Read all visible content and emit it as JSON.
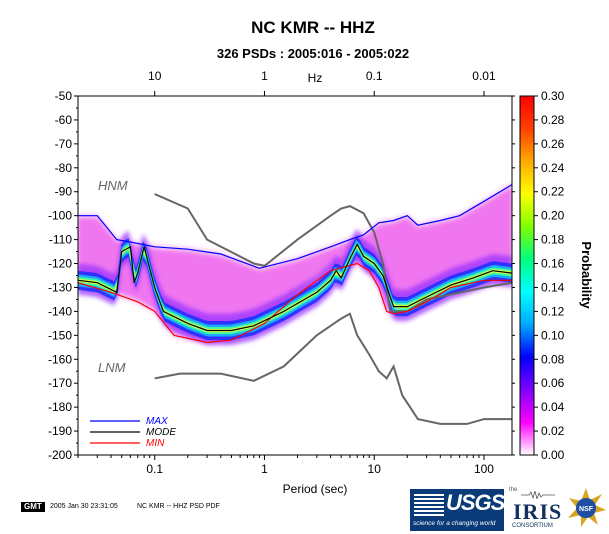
{
  "chart_data": {
    "type": "heatmap",
    "title": "NC KMR -- HHZ",
    "subtitle": "326 PSDs : 2005:016 - 2005:022",
    "xlabel": "Period (sec)",
    "top_axis_label": "Hz",
    "ylabel": "",
    "colorbar_label": "Probability",
    "x_scale": "log",
    "xlim": [
      0.02,
      180
    ],
    "ylim": [
      -200,
      -50
    ],
    "x_ticks": [
      0.1,
      1,
      10,
      100
    ],
    "x_tick_labels": [
      "0.1",
      "1",
      "10",
      "100"
    ],
    "top_ticks": [
      10,
      1,
      0.1,
      0.01
    ],
    "top_tick_labels": [
      "10",
      "1",
      "0.1",
      "0.01"
    ],
    "y_ticks": [
      -50,
      -60,
      -70,
      -80,
      -90,
      -100,
      -110,
      -120,
      -130,
      -140,
      -150,
      -160,
      -170,
      -180,
      -190,
      -200
    ],
    "y_tick_labels": [
      "-50",
      "-60",
      "-70",
      "-80",
      "-90",
      "-100",
      "-110",
      "-120",
      "-130",
      "-140",
      "-150",
      "-160",
      "-170",
      "-180",
      "-190",
      "-200"
    ],
    "colorbar_range": [
      0.0,
      0.3
    ],
    "colorbar_ticks": [
      0.3,
      0.28,
      0.26,
      0.24,
      0.22,
      0.2,
      0.18,
      0.16,
      0.14,
      0.12,
      0.1,
      0.08,
      0.06,
      0.04,
      0.02,
      0.0
    ],
    "colorbar_tick_labels": [
      "0.30",
      "0.28",
      "0.26",
      "0.24",
      "0.22",
      "0.20",
      "0.18",
      "0.16",
      "0.14",
      "0.12",
      "0.10",
      "0.08",
      "0.06",
      "0.04",
      "0.02",
      "0.00"
    ],
    "colorbar_colors": [
      "#ffffff",
      "#ff00ff",
      "#8000ff",
      "#0000ff",
      "#00aaff",
      "#00ffff",
      "#00ff80",
      "#80ff00",
      "#ffff00",
      "#ffaa00",
      "#ff4000",
      "#ff0000"
    ],
    "series": [
      {
        "name": "MAX",
        "color": "#0000ff",
        "x": [
          0.02,
          0.03,
          0.045,
          0.06,
          0.1,
          0.2,
          0.4,
          0.9,
          2,
          4,
          6,
          8,
          11,
          15,
          20,
          25,
          40,
          60,
          100,
          180
        ],
        "y": [
          -100,
          -100,
          -110,
          -111,
          -113,
          -114,
          -116,
          -122,
          -118,
          -113,
          -110,
          -108,
          -103,
          -102,
          -100,
          -104,
          -102,
          -100,
          -94,
          -87
        ]
      },
      {
        "name": "MODE",
        "color": "#000000",
        "x": [
          0.02,
          0.03,
          0.045,
          0.05,
          0.06,
          0.065,
          0.07,
          0.08,
          0.1,
          0.12,
          0.2,
          0.3,
          0.5,
          0.8,
          1.5,
          3,
          4,
          4.5,
          5,
          6,
          7,
          8,
          10,
          12,
          15,
          20,
          30,
          50,
          80,
          120,
          180
        ],
        "y": [
          -127,
          -128,
          -132,
          -115,
          -113,
          -128,
          -124,
          -113,
          -130,
          -140,
          -145,
          -148,
          -148,
          -146,
          -140,
          -132,
          -127,
          -123,
          -126,
          -118,
          -112,
          -117,
          -120,
          -125,
          -138,
          -138,
          -134,
          -129,
          -126,
          -123,
          -124
        ]
      },
      {
        "name": "MIN",
        "color": "#ff0000",
        "x": [
          0.02,
          0.04,
          0.07,
          0.1,
          0.15,
          0.3,
          0.5,
          1,
          2,
          4,
          7,
          9,
          11,
          13,
          15,
          20,
          30,
          50,
          100,
          180
        ],
        "y": [
          -128,
          -132,
          -136,
          -140,
          -150,
          -153,
          -152,
          -145,
          -133,
          -123,
          -120,
          -123,
          -130,
          -140,
          -141,
          -140,
          -136,
          -130,
          -127,
          -127
        ]
      }
    ],
    "reference_curves": [
      {
        "name": "HNM",
        "x": [
          0.1,
          0.2,
          0.3,
          0.8,
          1.0,
          2,
          4,
          5,
          6,
          8,
          10,
          12,
          14,
          20,
          30,
          100,
          180
        ],
        "y": [
          -91,
          -97,
          -110,
          -120,
          -121,
          -110,
          -100,
          -97,
          -96,
          -99,
          -107,
          -120,
          -140,
          -140,
          -135,
          -130,
          -128
        ]
      },
      {
        "name": "LNM",
        "x": [
          0.1,
          0.17,
          0.4,
          0.8,
          1.5,
          3,
          5,
          6,
          7,
          9,
          11,
          13,
          15,
          18,
          25,
          40,
          70,
          100,
          180
        ],
        "y": [
          -168,
          -166,
          -166,
          -169,
          -163,
          -150,
          -143,
          -141,
          -150,
          -158,
          -165,
          -168,
          -163,
          -175,
          -185,
          -187,
          -187,
          -185,
          -185
        ]
      }
    ],
    "legend": {
      "placement": "bottom-left",
      "entries": [
        "MAX",
        "MODE",
        "MIN"
      ]
    },
    "grid": false
  },
  "footer": {
    "gmt_badge": "GMT",
    "timestamp": "2005 Jan 30 23:31:05",
    "caption": "NC KMR -- HHZ PSD PDF",
    "usgs_word": "USGS",
    "usgs_tagline": "science for a changing world",
    "iris_the": "the",
    "iris_name": "IRIS",
    "iris_consortium": "CONSORTIUM",
    "nsf": "NSF"
  }
}
